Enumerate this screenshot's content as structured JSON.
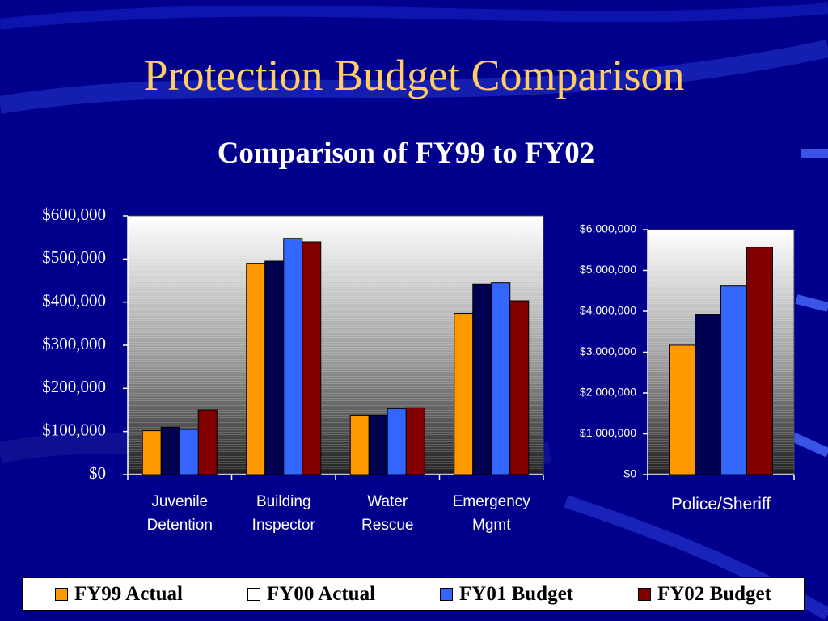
{
  "slide": {
    "title": "Protection Budget Comparison",
    "chart_title": "Comparison of FY99 to FY02"
  },
  "colors": {
    "background": "#00008c",
    "title": "#ffcc66",
    "FY99 Actual": "#ff9900",
    "FY00 Actual": "#000050",
    "FY01 Budget": "#3366ff",
    "FY02 Budget": "#800000"
  },
  "legend": [
    {
      "label": "FY99 Actual",
      "color": "#ff9900"
    },
    {
      "label": "FY00 Actual",
      "color": "#000050"
    },
    {
      "label": "FY01 Budget",
      "color": "#3366ff"
    },
    {
      "label": "FY02 Budget",
      "color": "#800000"
    }
  ],
  "chart_data": [
    {
      "type": "bar",
      "title": "",
      "xlabel": "",
      "ylabel": "",
      "categories": [
        [
          "Juvenile",
          "Detention"
        ],
        [
          "Building",
          "Inspector"
        ],
        [
          "Water",
          "Rescue"
        ],
        [
          "Emergency",
          "Mgmt"
        ]
      ],
      "ylim": [
        0,
        600000
      ],
      "yticks": [
        "$0",
        "$100,000",
        "$200,000",
        "$300,000",
        "$400,000",
        "$500,000",
        "$600,000"
      ],
      "series": [
        {
          "name": "FY99 Actual",
          "values": [
            102000,
            490000,
            138000,
            374000
          ]
        },
        {
          "name": "FY00 Actual",
          "values": [
            110000,
            495000,
            138000,
            442000
          ]
        },
        {
          "name": "FY01 Budget",
          "values": [
            105000,
            548000,
            153000,
            445000
          ]
        },
        {
          "name": "FY02 Budget",
          "values": [
            150000,
            540000,
            155000,
            403000
          ]
        }
      ]
    },
    {
      "type": "bar",
      "title": "",
      "xlabel": "",
      "ylabel": "",
      "categories": [
        [
          "Police/Sheriff"
        ]
      ],
      "ylim": [
        0,
        6000000
      ],
      "yticks": [
        "$0",
        "$1,000,000",
        "$2,000,000",
        "$3,000,000",
        "$4,000,000",
        "$5,000,000",
        "$6,000,000"
      ],
      "series": [
        {
          "name": "FY99 Actual",
          "values": [
            3170000
          ]
        },
        {
          "name": "FY00 Actual",
          "values": [
            3930000
          ]
        },
        {
          "name": "FY01 Budget",
          "values": [
            4620000
          ]
        },
        {
          "name": "FY02 Budget",
          "values": [
            5570000
          ]
        }
      ]
    }
  ]
}
